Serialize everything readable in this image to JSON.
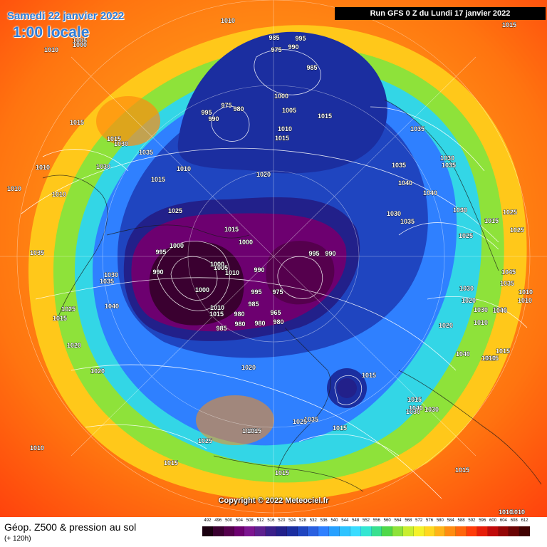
{
  "header": {
    "date_label": "Samedi 22 janvier 2022",
    "time_label": "1:00 locale",
    "run_label": "Run GFS 0 Z du Lundi 17 janvier 2022"
  },
  "copyright": "Copyright © 2022 Meteociel.fr",
  "footer": {
    "title": "Géop. Z500 & pression au sol",
    "subtitle": "(+ 120h)"
  },
  "scale": {
    "values": [
      "492",
      "496",
      "500",
      "504",
      "508",
      "512",
      "516",
      "520",
      "524",
      "528",
      "532",
      "536",
      "540",
      "544",
      "548",
      "552",
      "556",
      "560",
      "564",
      "568",
      "572",
      "576",
      "580",
      "584",
      "588",
      "592",
      "596",
      "600",
      "604",
      "608",
      "612"
    ],
    "colors": [
      "#1a0010",
      "#3a0030",
      "#55004d",
      "#6d0070",
      "#7c1590",
      "#5e208f",
      "#3a1f8a",
      "#22208a",
      "#1b2ea0",
      "#1f45c0",
      "#2a60e0",
      "#2f80ff",
      "#27a0ff",
      "#2dc3ff",
      "#39dcff",
      "#33e6d2",
      "#38e090",
      "#4fd84a",
      "#8ee23a",
      "#c8ee30",
      "#f4f22a",
      "#ffd820",
      "#ffb418",
      "#ff8c10",
      "#ff660c",
      "#ff3c0a",
      "#e61e0a",
      "#c00a0a",
      "#940606",
      "#6a0404",
      "#400202"
    ]
  },
  "pressure_labels": [
    {
      "text": "1010"
    },
    {
      "text": "1005"
    },
    {
      "text": "1000"
    },
    {
      "text": "1015"
    },
    {
      "text": "1015"
    },
    {
      "text": "1030"
    },
    {
      "text": "1035"
    },
    {
      "text": "1010"
    },
    {
      "text": "1015"
    },
    {
      "text": "1010"
    },
    {
      "text": "1030"
    },
    {
      "text": "1010"
    },
    {
      "text": "1010"
    },
    {
      "text": "985"
    },
    {
      "text": "995"
    },
    {
      "text": "975"
    },
    {
      "text": "990"
    },
    {
      "text": "985"
    },
    {
      "text": "1000"
    },
    {
      "text": "1005"
    },
    {
      "text": "1015"
    },
    {
      "text": "1010"
    },
    {
      "text": "1015"
    },
    {
      "text": "1020"
    },
    {
      "text": "995"
    },
    {
      "text": "990"
    },
    {
      "text": "975"
    },
    {
      "text": "980"
    },
    {
      "text": "1035"
    },
    {
      "text": "1035"
    },
    {
      "text": "1030"
    },
    {
      "text": "1035"
    },
    {
      "text": "1040"
    },
    {
      "text": "1040"
    },
    {
      "text": "1030"
    },
    {
      "text": "1035"
    },
    {
      "text": "1025"
    },
    {
      "text": "1025"
    },
    {
      "text": "1015"
    },
    {
      "text": "1025"
    },
    {
      "text": "1025"
    },
    {
      "text": "1030"
    },
    {
      "text": "1015"
    },
    {
      "text": "1010"
    },
    {
      "text": "1025"
    },
    {
      "text": "995"
    },
    {
      "text": "1000"
    },
    {
      "text": "990"
    },
    {
      "text": "1015"
    },
    {
      "text": "1000"
    },
    {
      "text": "1005"
    },
    {
      "text": "1000"
    },
    {
      "text": "990"
    },
    {
      "text": "995"
    },
    {
      "text": "990"
    },
    {
      "text": "1010"
    },
    {
      "text": "1000"
    },
    {
      "text": "975"
    },
    {
      "text": "995"
    },
    {
      "text": "1010"
    },
    {
      "text": "985"
    },
    {
      "text": "965"
    },
    {
      "text": "1015"
    },
    {
      "text": "980"
    },
    {
      "text": "980"
    },
    {
      "text": "985"
    },
    {
      "text": "980"
    },
    {
      "text": "980"
    },
    {
      "text": "1035"
    },
    {
      "text": "1030"
    },
    {
      "text": "1035"
    },
    {
      "text": "1040"
    },
    {
      "text": "1025"
    },
    {
      "text": "1015"
    },
    {
      "text": "1020"
    },
    {
      "text": "1020"
    },
    {
      "text": "1020"
    },
    {
      "text": "1015"
    },
    {
      "text": "1045"
    },
    {
      "text": "1035"
    },
    {
      "text": "1010"
    },
    {
      "text": "1010"
    },
    {
      "text": "1010"
    },
    {
      "text": "1040"
    },
    {
      "text": "1030"
    },
    {
      "text": "1020"
    },
    {
      "text": "1030"
    },
    {
      "text": "1010"
    },
    {
      "text": "1040"
    },
    {
      "text": "1015"
    },
    {
      "text": "1020"
    },
    {
      "text": "1015"
    },
    {
      "text": "1010"
    },
    {
      "text": "1015"
    },
    {
      "text": "1040"
    },
    {
      "text": "1030"
    },
    {
      "text": "1030"
    },
    {
      "text": "1035"
    },
    {
      "text": "1025"
    },
    {
      "text": "1015"
    },
    {
      "text": "1025"
    },
    {
      "text": "1015"
    },
    {
      "text": "1015"
    },
    {
      "text": "1010"
    },
    {
      "text": "1015"
    },
    {
      "text": "1025"
    },
    {
      "text": "1015"
    },
    {
      "text": "1010"
    },
    {
      "text": "1010"
    }
  ]
}
